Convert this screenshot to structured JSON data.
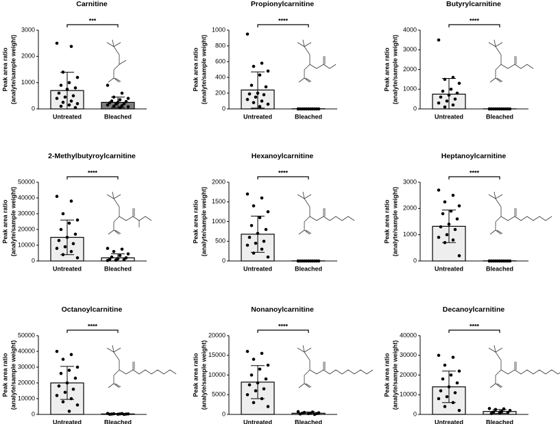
{
  "chart_data": [
    {
      "type": "bar",
      "title": "Carnitine",
      "ylabel": [
        "Peak area ratio",
        "(analyte/sample weight)"
      ],
      "categories": [
        "Untreated",
        "Bleached"
      ],
      "values": [
        700,
        250
      ],
      "errors": [
        700,
        200
      ],
      "colors": [
        "#eeeeee",
        "#7f7f7f"
      ],
      "points": [
        [
          2500,
          2380,
          1400,
          1200,
          1000,
          900,
          800,
          750,
          600,
          500,
          450,
          400,
          300,
          250,
          200,
          150,
          100,
          50
        ],
        [
          900,
          600,
          450,
          400,
          350,
          300,
          280,
          250,
          230,
          200,
          180,
          150,
          120,
          100,
          80,
          50
        ]
      ],
      "ylim": [
        0,
        3000
      ],
      "yticks": [
        0,
        1000,
        2000,
        3000
      ],
      "annotation": "***"
    },
    {
      "type": "bar",
      "title": "Propionylcarnitine",
      "ylabel": [
        "Peak area ratio",
        "(analyte/sample weight)"
      ],
      "categories": [
        "Untreated",
        "Bleached"
      ],
      "values": [
        240,
        2
      ],
      "errors": [
        230,
        2
      ],
      "colors": [
        "#eeeeee",
        "#eeeeee"
      ],
      "points": [
        [
          950,
          580,
          540,
          480,
          430,
          300,
          280,
          200,
          190,
          180,
          150,
          120,
          100,
          80,
          60,
          30
        ],
        [
          0,
          0,
          0,
          0,
          0,
          0,
          0,
          0,
          0,
          0,
          0,
          0
        ]
      ],
      "ylim": [
        0,
        1000
      ],
      "yticks": [
        0,
        200,
        400,
        600,
        800,
        1000
      ],
      "annotation": "****"
    },
    {
      "type": "bar",
      "title": "Butyrylcarnitine",
      "ylabel": [
        "Peak area ratio",
        "(analyte/sample weight)"
      ],
      "categories": [
        "Untreated",
        "Bleached"
      ],
      "values": [
        750,
        5
      ],
      "errors": [
        800,
        5
      ],
      "colors": [
        "#eeeeee",
        "#eeeeee"
      ],
      "points": [
        [
          3500,
          1600,
          1500,
          1300,
          1000,
          900,
          800,
          700,
          600,
          500,
          400,
          300,
          200,
          100
        ],
        [
          0,
          0,
          0,
          0,
          0,
          0,
          0,
          0,
          0,
          0,
          0,
          0
        ]
      ],
      "ylim": [
        0,
        4000
      ],
      "yticks": [
        0,
        1000,
        2000,
        3000,
        4000
      ],
      "annotation": "****"
    },
    {
      "type": "bar",
      "title": "2-Methylbutyroylcarnitine",
      "ylabel": [
        "Peak area ratio",
        "(analyte/sample weight)"
      ],
      "categories": [
        "Untreated",
        "Bleached"
      ],
      "values": [
        15000,
        2000
      ],
      "errors": [
        11000,
        2500
      ],
      "colors": [
        "#eeeeee",
        "#eeeeee"
      ],
      "points": [
        [
          41000,
          38000,
          30000,
          26000,
          24000,
          20000,
          17000,
          15000,
          13000,
          11000,
          9000,
          8000,
          6000,
          4000,
          2000
        ],
        [
          8000,
          7500,
          6000,
          4500,
          3500,
          2500,
          2000,
          1500,
          1000,
          800,
          500,
          300
        ]
      ],
      "ylim": [
        0,
        50000
      ],
      "yticks": [
        0,
        10000,
        20000,
        30000,
        40000,
        50000
      ],
      "annotation": "****"
    },
    {
      "type": "bar",
      "title": "Hexanoylcarnitine",
      "ylabel": [
        "Peak area ratio",
        "(analyte/sample weight)"
      ],
      "categories": [
        "Untreated",
        "Bleached"
      ],
      "values": [
        680,
        3
      ],
      "errors": [
        460,
        3
      ],
      "colors": [
        "#eeeeee",
        "#eeeeee"
      ],
      "points": [
        [
          1700,
          1600,
          1400,
          1250,
          1100,
          900,
          800,
          700,
          600,
          500,
          450,
          400,
          300,
          200,
          100
        ],
        [
          0,
          0,
          0,
          0,
          0,
          0,
          0,
          0,
          0,
          0,
          0,
          0
        ]
      ],
      "ylim": [
        0,
        2000
      ],
      "yticks": [
        0,
        500,
        1000,
        1500,
        2000
      ],
      "annotation": "****"
    },
    {
      "type": "bar",
      "title": "Heptanoylcarnitine",
      "ylabel": [
        "Peak area ratio",
        "(analyte/sample weight)"
      ],
      "categories": [
        "Untreated",
        "Bleached"
      ],
      "values": [
        1320,
        5
      ],
      "errors": [
        620,
        5
      ],
      "colors": [
        "#eeeeee",
        "#eeeeee"
      ],
      "points": [
        [
          2700,
          2500,
          2250,
          2100,
          1900,
          1800,
          1600,
          1400,
          1300,
          1200,
          1000,
          900,
          800,
          700,
          200
        ],
        [
          0,
          0,
          0,
          0,
          0,
          0,
          0,
          0,
          0,
          0,
          0,
          0
        ]
      ],
      "ylim": [
        0,
        3000
      ],
      "yticks": [
        0,
        1000,
        2000,
        3000
      ],
      "annotation": "****"
    },
    {
      "type": "bar",
      "title": "Octanoylcarnitine",
      "ylabel": [
        "Peak area ratio",
        "(analyte/sample weight)"
      ],
      "categories": [
        "Untreated",
        "Bleached"
      ],
      "values": [
        20000,
        300
      ],
      "errors": [
        10500,
        300
      ],
      "colors": [
        "#eeeeee",
        "#eeeeee"
      ],
      "points": [
        [
          40000,
          38000,
          35000,
          30000,
          28000,
          26000,
          23000,
          20000,
          18000,
          16000,
          14000,
          12000,
          10000,
          8000,
          6000,
          2000
        ],
        [
          600,
          500,
          400,
          300,
          300,
          200,
          200,
          100,
          100,
          0
        ]
      ],
      "ylim": [
        0,
        50000
      ],
      "yticks": [
        0,
        10000,
        20000,
        30000,
        40000,
        50000
      ],
      "annotation": "****"
    },
    {
      "type": "bar",
      "title": "Nonanoylcarnitine",
      "ylabel": [
        "Peak area ratio",
        "(analyte/sample weight)"
      ],
      "categories": [
        "Untreated",
        "Bleached"
      ],
      "values": [
        8200,
        300
      ],
      "errors": [
        4200,
        300
      ],
      "colors": [
        "#eeeeee",
        "#eeeeee"
      ],
      "points": [
        [
          16000,
          15500,
          14000,
          12500,
          11500,
          10000,
          9000,
          8000,
          7500,
          6500,
          6000,
          5000,
          4000,
          3000,
          2000
        ],
        [
          700,
          600,
          500,
          400,
          300,
          300,
          200,
          200,
          100,
          0
        ]
      ],
      "ylim": [
        0,
        20000
      ],
      "yticks": [
        0,
        5000,
        10000,
        15000,
        20000
      ],
      "annotation": "****"
    },
    {
      "type": "bar",
      "title": "Decanoylcarnitine",
      "ylabel": [
        "Peak area ratio",
        "(analyte/sample weight)"
      ],
      "categories": [
        "Untreated",
        "Bleached"
      ],
      "values": [
        14000,
        1500
      ],
      "errors": [
        8000,
        1000
      ],
      "colors": [
        "#eeeeee",
        "#eeeeee"
      ],
      "points": [
        [
          30000,
          29000,
          25000,
          22000,
          20000,
          18000,
          16000,
          14000,
          12000,
          11000,
          9000,
          8000,
          6000,
          4000,
          2000
        ],
        [
          3000,
          2800,
          2500,
          2000,
          1500,
          1200,
          1000,
          800,
          500
        ]
      ],
      "ylim": [
        0,
        40000
      ],
      "yticks": [
        0,
        10000,
        20000,
        30000,
        40000
      ],
      "annotation": "****"
    }
  ]
}
